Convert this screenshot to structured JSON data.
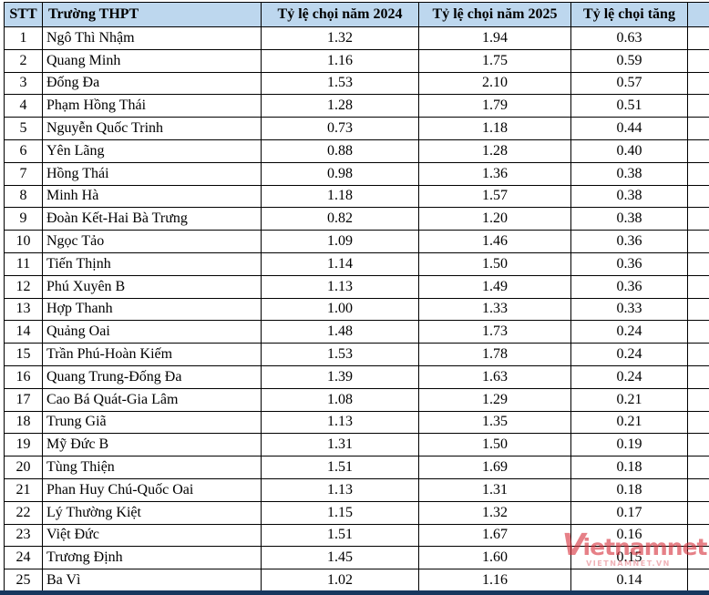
{
  "table": {
    "columns": [
      "STT",
      "Trường THPT",
      "Tỷ lệ chọi năm 2024",
      "Tỷ lệ chọi năm 2025",
      "Tỷ lệ chọi tăng"
    ],
    "rows": [
      {
        "stt": "1",
        "school": "Ngô Thì Nhậm",
        "y2024": "1.32",
        "y2025": "1.94",
        "increase": "0.63"
      },
      {
        "stt": "2",
        "school": "Quang Minh",
        "y2024": "1.16",
        "y2025": "1.75",
        "increase": "0.59"
      },
      {
        "stt": "3",
        "school": "Đống Đa",
        "y2024": "1.53",
        "y2025": "2.10",
        "increase": "0.57"
      },
      {
        "stt": "4",
        "school": "Phạm Hồng Thái",
        "y2024": "1.28",
        "y2025": "1.79",
        "increase": "0.51"
      },
      {
        "stt": "5",
        "school": "Nguyễn Quốc Trinh",
        "y2024": "0.73",
        "y2025": "1.18",
        "increase": "0.44"
      },
      {
        "stt": "6",
        "school": "Yên Lãng",
        "y2024": "0.88",
        "y2025": "1.28",
        "increase": "0.40"
      },
      {
        "stt": "7",
        "school": "Hồng Thái",
        "y2024": "0.98",
        "y2025": "1.36",
        "increase": "0.38"
      },
      {
        "stt": "8",
        "school": "Minh Hà",
        "y2024": "1.18",
        "y2025": "1.57",
        "increase": "0.38"
      },
      {
        "stt": "9",
        "school": "Đoàn Kết-Hai Bà Trưng",
        "y2024": "0.82",
        "y2025": "1.20",
        "increase": "0.38"
      },
      {
        "stt": "10",
        "school": "Ngọc Tảo",
        "y2024": "1.09",
        "y2025": "1.46",
        "increase": "0.36"
      },
      {
        "stt": "11",
        "school": "Tiến Thịnh",
        "y2024": "1.14",
        "y2025": "1.50",
        "increase": "0.36"
      },
      {
        "stt": "12",
        "school": "Phú Xuyên B",
        "y2024": "1.13",
        "y2025": "1.49",
        "increase": "0.36"
      },
      {
        "stt": "13",
        "school": "Hợp Thanh",
        "y2024": "1.00",
        "y2025": "1.33",
        "increase": "0.33"
      },
      {
        "stt": "14",
        "school": "Quảng Oai",
        "y2024": "1.48",
        "y2025": "1.73",
        "increase": "0.24"
      },
      {
        "stt": "15",
        "school": "Trần Phú-Hoàn Kiếm",
        "y2024": "1.53",
        "y2025": "1.78",
        "increase": "0.24"
      },
      {
        "stt": "16",
        "school": "Quang Trung-Đống Đa",
        "y2024": "1.39",
        "y2025": "1.63",
        "increase": "0.24"
      },
      {
        "stt": "17",
        "school": "Cao Bá Quát-Gia Lâm",
        "y2024": "1.08",
        "y2025": "1.29",
        "increase": "0.21"
      },
      {
        "stt": "18",
        "school": "Trung Giã",
        "y2024": "1.13",
        "y2025": "1.35",
        "increase": "0.21"
      },
      {
        "stt": "19",
        "school": "Mỹ Đức B",
        "y2024": "1.31",
        "y2025": "1.50",
        "increase": "0.19"
      },
      {
        "stt": "20",
        "school": "Tùng Thiện",
        "y2024": "1.51",
        "y2025": "1.69",
        "increase": "0.18"
      },
      {
        "stt": "21",
        "school": "Phan Huy Chú-Quốc Oai",
        "y2024": "1.13",
        "y2025": "1.31",
        "increase": "0.18"
      },
      {
        "stt": "22",
        "school": "Lý Thường Kiệt",
        "y2024": "1.15",
        "y2025": "1.32",
        "increase": "0.17"
      },
      {
        "stt": "23",
        "school": "Việt Đức",
        "y2024": "1.51",
        "y2025": "1.67",
        "increase": "0.16"
      },
      {
        "stt": "24",
        "school": "Trương Định",
        "y2024": "1.45",
        "y2025": "1.60",
        "increase": "0.15"
      },
      {
        "stt": "25",
        "school": "Ba Vì",
        "y2024": "1.02",
        "y2025": "1.16",
        "increase": "0.14"
      }
    ]
  },
  "watermark": {
    "logo_initial": "V",
    "logo_rest": "ietnamnet",
    "subtext": "VIETNAMNET.VN"
  },
  "colors": {
    "header_bg": "#BDD7EE",
    "increase_text": "#FF0000",
    "border": "#000000",
    "bottom_bar": "#17375E",
    "watermark": "#D6323E"
  }
}
